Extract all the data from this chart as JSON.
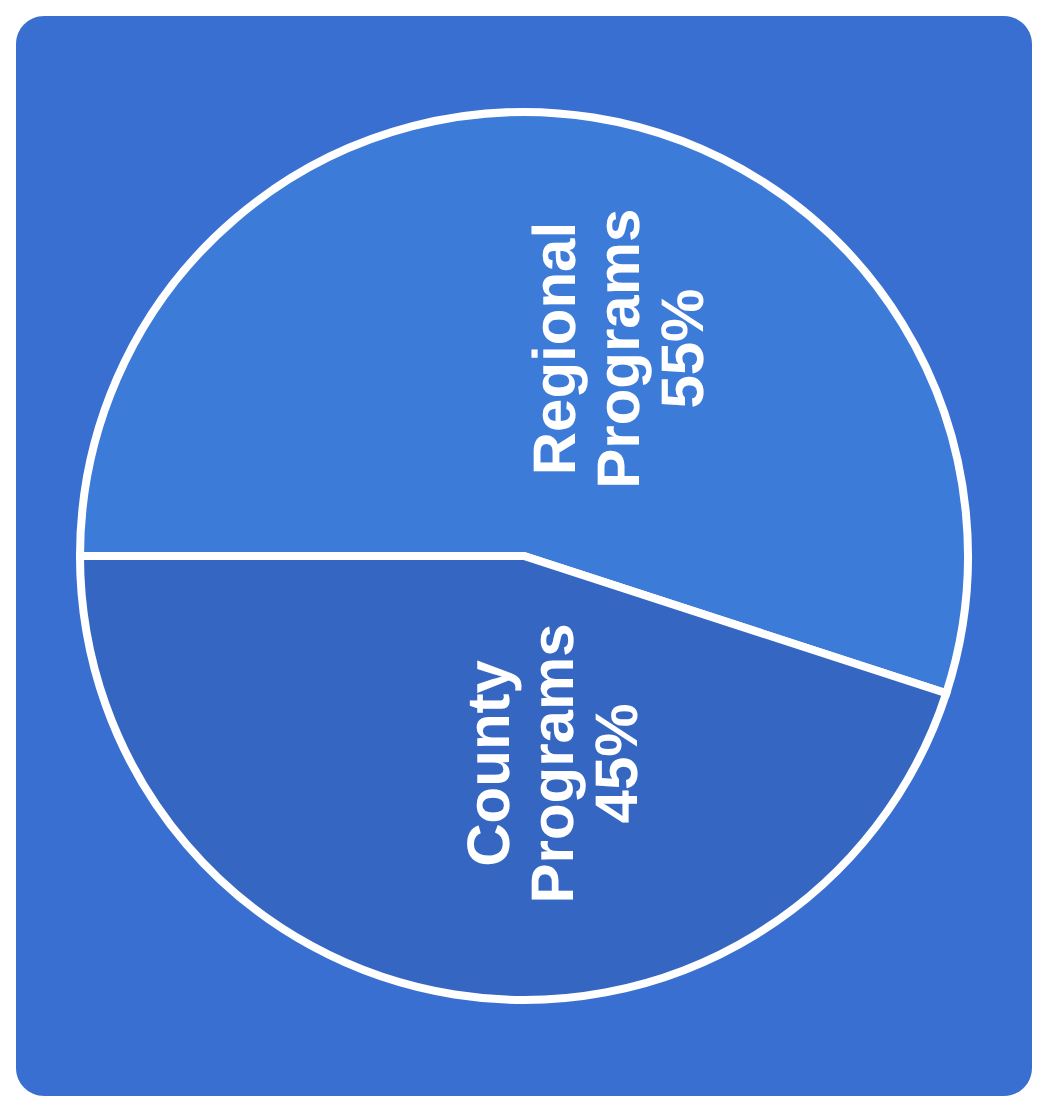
{
  "chart_data": {
    "type": "pie",
    "categories": [
      "Regional Programs",
      "County Programs"
    ],
    "values": [
      55,
      45
    ],
    "colors": [
      "#3d7bd9",
      "#3466c2"
    ],
    "value_labels": [
      "55%",
      "45%"
    ]
  }
}
